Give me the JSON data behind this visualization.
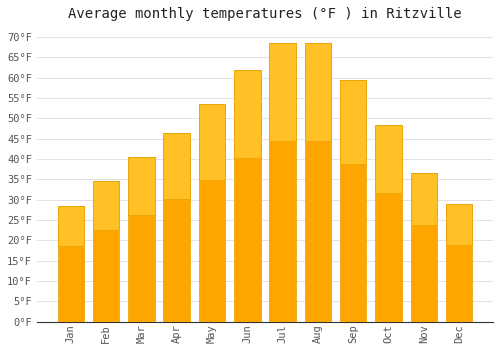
{
  "title": "Average monthly temperatures (°F ) in Ritzville",
  "months": [
    "Jan",
    "Feb",
    "Mar",
    "Apr",
    "May",
    "Jun",
    "Jul",
    "Aug",
    "Sep",
    "Oct",
    "Nov",
    "Dec"
  ],
  "values": [
    28.5,
    34.5,
    40.5,
    46.5,
    53.5,
    62.0,
    68.5,
    68.5,
    59.5,
    48.5,
    36.5,
    29.0
  ],
  "bar_color_top": "#FFC125",
  "bar_color_bottom": "#FFA500",
  "bar_edge_color": "#E8A000",
  "background_color": "#FFFFFF",
  "grid_color": "#DDDDDD",
  "ylim": [
    0,
    72
  ],
  "yticks": [
    0,
    5,
    10,
    15,
    20,
    25,
    30,
    35,
    40,
    45,
    50,
    55,
    60,
    65,
    70
  ],
  "ytick_labels": [
    "0°F",
    "5°F",
    "10°F",
    "15°F",
    "20°F",
    "25°F",
    "30°F",
    "35°F",
    "40°F",
    "45°F",
    "50°F",
    "55°F",
    "60°F",
    "65°F",
    "70°F"
  ],
  "title_fontsize": 10,
  "tick_fontsize": 7.5,
  "bar_width": 0.75,
  "label_color": "#555555",
  "spine_color": "#333333"
}
